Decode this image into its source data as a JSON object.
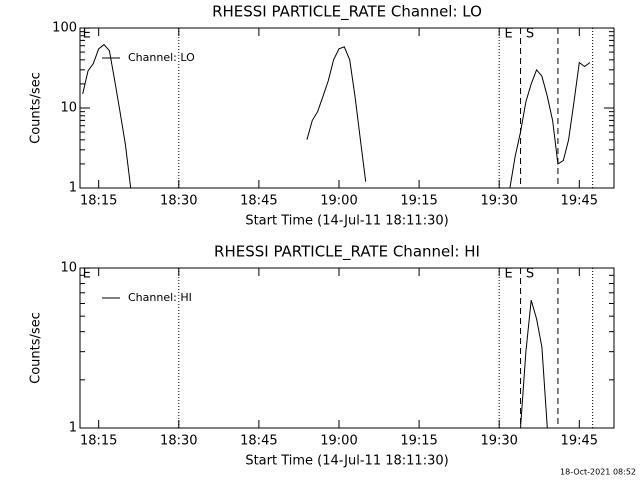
{
  "chart_data": [
    {
      "type": "line",
      "title": "RHESSI PARTICLE_RATE Channel: LO",
      "xlabel": "Start Time (14-Jul-11 18:11:30)",
      "ylabel": "Counts/sec",
      "log_y": true,
      "xlim": [
        "18:11:30",
        "19:51:30"
      ],
      "xticks": [
        "18:15",
        "18:30",
        "18:45",
        "19:00",
        "19:15",
        "19:30",
        "19:45"
      ],
      "ylim": [
        1,
        100
      ],
      "yticks": [
        1,
        10,
        100
      ],
      "x": [
        "18:12",
        "18:13",
        "18:14",
        "18:15",
        "18:16",
        "18:17",
        "18:18",
        "18:19",
        "18:20",
        "18:21",
        "18:22",
        "18:54",
        "18:55",
        "18:56",
        "18:57",
        "18:58",
        "18:59",
        "19:00",
        "19:01",
        "19:02",
        "19:03",
        "19:04",
        "19:05",
        "19:06",
        "19:32",
        "19:33",
        "19:34",
        "19:35",
        "19:36",
        "19:37",
        "19:38",
        "19:39",
        "19:40",
        "19:41",
        "19:42",
        "19:43",
        "19:44",
        "19:45",
        "19:46",
        "19:47"
      ],
      "series": [
        {
          "name": "Channel: LO",
          "color": "#000000",
          "values": [
            15,
            29,
            36,
            55,
            62,
            52,
            22,
            9,
            3.5,
            1,
            null,
            4,
            7,
            9,
            14,
            22,
            40,
            55,
            58,
            40,
            14,
            4,
            1.2,
            null,
            1,
            2.5,
            5,
            12,
            20,
            30,
            25,
            14,
            7,
            2,
            2.2,
            4,
            12,
            37,
            33,
            37
          ]
        }
      ],
      "markers": [
        {
          "x": "18:30",
          "style": "dotted"
        },
        {
          "x": "19:30",
          "style": "dotted"
        },
        {
          "x": "19:34",
          "style": "dashed"
        },
        {
          "x": "19:41",
          "style": "dashed"
        },
        {
          "x": "19:47:30",
          "style": "dotted"
        }
      ],
      "annotations": [
        {
          "x": "18:12",
          "text": "E"
        },
        {
          "x": "19:31",
          "text": "E"
        },
        {
          "x": "19:35",
          "text": "S"
        }
      ]
    },
    {
      "type": "line",
      "title": "RHESSI PARTICLE_RATE Channel: HI",
      "xlabel": "Start Time (14-Jul-11 18:11:30)",
      "ylabel": "Counts/sec",
      "log_y": true,
      "xlim": [
        "18:11:30",
        "19:51:30"
      ],
      "xticks": [
        "18:15",
        "18:30",
        "18:45",
        "19:00",
        "19:15",
        "19:30",
        "19:45"
      ],
      "ylim": [
        1,
        10
      ],
      "yticks": [
        1,
        10
      ],
      "x": [
        "19:34",
        "19:35",
        "19:36",
        "19:37",
        "19:38",
        "19:39"
      ],
      "series": [
        {
          "name": "Channel: HI",
          "color": "#000000",
          "values": [
            1,
            3,
            6.3,
            4.8,
            3.2,
            1
          ]
        }
      ],
      "markers": [
        {
          "x": "18:30",
          "style": "dotted"
        },
        {
          "x": "19:30",
          "style": "dotted"
        },
        {
          "x": "19:34",
          "style": "dashed"
        },
        {
          "x": "19:41",
          "style": "dashed"
        },
        {
          "x": "19:47:30",
          "style": "dotted"
        }
      ],
      "annotations": [
        {
          "x": "18:12",
          "text": "E"
        },
        {
          "x": "19:31",
          "text": "E"
        },
        {
          "x": "19:35",
          "text": "S"
        }
      ]
    }
  ],
  "footer": "18-Oct-2021 08:52"
}
